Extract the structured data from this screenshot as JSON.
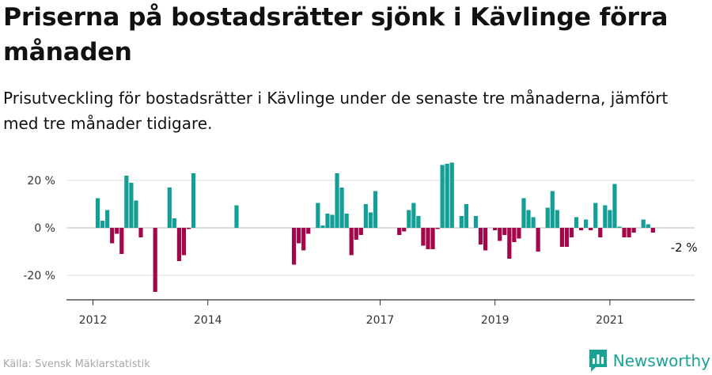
{
  "title": "Priserna på bostadsrätter sjönk i Kävlinge förra månaden",
  "subtitle": "Prisutveckling för bostadsrätter i Kävlinge under de senaste tre månaderna, jämfört med tre månader tidigare.",
  "source": "Källa: Svensk Mäklarstatistik",
  "brand": "Newsworthy",
  "colors": {
    "positive": "#139e96",
    "negative": "#a3064b",
    "grid": "#dddddd",
    "axis": "#333333",
    "brand": "#18a394"
  },
  "chart_data": {
    "type": "bar",
    "title": "Priserna på bostadsrätter sjönk i Kävlinge förra månaden",
    "xlabel": "",
    "ylabel": "",
    "ylim": [
      -31,
      33
    ],
    "yticks": [
      {
        "value": 20,
        "label": "20 %"
      },
      {
        "value": 0,
        "label": "0 %"
      },
      {
        "value": -20,
        "label": "-20 %"
      }
    ],
    "xticks": [
      {
        "date": "2012-01",
        "label": "2012"
      },
      {
        "date": "2014-01",
        "label": "2014"
      },
      {
        "date": "2017-01",
        "label": "2017"
      },
      {
        "date": "2019-01",
        "label": "2019"
      },
      {
        "date": "2021-01",
        "label": "2021"
      }
    ],
    "annotation": {
      "date": "2022-05",
      "text": "-2 %"
    },
    "series": [
      {
        "name": "Prisutveckling",
        "unit": "%",
        "points": [
          {
            "date": "2012-01",
            "value": null
          },
          {
            "date": "2012-02",
            "value": 12.5
          },
          {
            "date": "2012-03",
            "value": 3
          },
          {
            "date": "2012-04",
            "value": 7.5
          },
          {
            "date": "2012-05",
            "value": -6.5
          },
          {
            "date": "2012-06",
            "value": -2.5
          },
          {
            "date": "2012-07",
            "value": -11
          },
          {
            "date": "2012-08",
            "value": 22
          },
          {
            "date": "2012-09",
            "value": 19
          },
          {
            "date": "2012-10",
            "value": 11.5
          },
          {
            "date": "2012-11",
            "value": -4
          },
          {
            "date": "2012-12",
            "value": null
          },
          {
            "date": "2013-01",
            "value": null
          },
          {
            "date": "2013-02",
            "value": -27
          },
          {
            "date": "2013-03",
            "value": null
          },
          {
            "date": "2013-04",
            "value": null
          },
          {
            "date": "2013-05",
            "value": 17
          },
          {
            "date": "2013-06",
            "value": 4
          },
          {
            "date": "2013-07",
            "value": -14
          },
          {
            "date": "2013-08",
            "value": -11.5
          },
          {
            "date": "2013-09",
            "value": -0.5
          },
          {
            "date": "2013-10",
            "value": 23
          },
          {
            "date": "2013-11",
            "value": null
          },
          {
            "date": "2013-12",
            "value": null
          },
          {
            "date": "2014-01",
            "value": null
          },
          {
            "date": "2014-02",
            "value": null
          },
          {
            "date": "2014-03",
            "value": null
          },
          {
            "date": "2014-04",
            "value": null
          },
          {
            "date": "2014-05",
            "value": null
          },
          {
            "date": "2014-06",
            "value": null
          },
          {
            "date": "2014-07",
            "value": 9.5
          },
          {
            "date": "2014-08",
            "value": null
          },
          {
            "date": "2014-09",
            "value": null
          },
          {
            "date": "2014-10",
            "value": null
          },
          {
            "date": "2014-11",
            "value": null
          },
          {
            "date": "2014-12",
            "value": null
          },
          {
            "date": "2015-01",
            "value": null
          },
          {
            "date": "2015-02",
            "value": null
          },
          {
            "date": "2015-03",
            "value": null
          },
          {
            "date": "2015-04",
            "value": null
          },
          {
            "date": "2015-05",
            "value": null
          },
          {
            "date": "2015-06",
            "value": null
          },
          {
            "date": "2015-07",
            "value": -15.5
          },
          {
            "date": "2015-08",
            "value": -6.5
          },
          {
            "date": "2015-09",
            "value": -9.5
          },
          {
            "date": "2015-10",
            "value": -2.5
          },
          {
            "date": "2015-11",
            "value": null
          },
          {
            "date": "2015-12",
            "value": 10.5
          },
          {
            "date": "2016-01",
            "value": 1
          },
          {
            "date": "2016-02",
            "value": 6
          },
          {
            "date": "2016-03",
            "value": 5.5
          },
          {
            "date": "2016-04",
            "value": 23
          },
          {
            "date": "2016-05",
            "value": 17
          },
          {
            "date": "2016-06",
            "value": 6
          },
          {
            "date": "2016-07",
            "value": -11.5
          },
          {
            "date": "2016-08",
            "value": -5
          },
          {
            "date": "2016-09",
            "value": -3
          },
          {
            "date": "2016-10",
            "value": 10
          },
          {
            "date": "2016-11",
            "value": 6.5
          },
          {
            "date": "2016-12",
            "value": 15.5
          },
          {
            "date": "2017-01",
            "value": null
          },
          {
            "date": "2017-02",
            "value": null
          },
          {
            "date": "2017-03",
            "value": null
          },
          {
            "date": "2017-04",
            "value": null
          },
          {
            "date": "2017-05",
            "value": -3
          },
          {
            "date": "2017-06",
            "value": -1.5
          },
          {
            "date": "2017-07",
            "value": 7.5
          },
          {
            "date": "2017-08",
            "value": 10.5
          },
          {
            "date": "2017-09",
            "value": 5
          },
          {
            "date": "2017-10",
            "value": -7.5
          },
          {
            "date": "2017-11",
            "value": -9
          },
          {
            "date": "2017-12",
            "value": -9
          },
          {
            "date": "2018-01",
            "value": -0.5
          },
          {
            "date": "2018-02",
            "value": 26.5
          },
          {
            "date": "2018-03",
            "value": 27
          },
          {
            "date": "2018-04",
            "value": 27.5
          },
          {
            "date": "2018-05",
            "value": null
          },
          {
            "date": "2018-06",
            "value": 5
          },
          {
            "date": "2018-07",
            "value": 10
          },
          {
            "date": "2018-08",
            "value": null
          },
          {
            "date": "2018-09",
            "value": 5
          },
          {
            "date": "2018-10",
            "value": -7
          },
          {
            "date": "2018-11",
            "value": -9.5
          },
          {
            "date": "2018-12",
            "value": null
          },
          {
            "date": "2019-01",
            "value": -1
          },
          {
            "date": "2019-02",
            "value": -5.5
          },
          {
            "date": "2019-03",
            "value": -3
          },
          {
            "date": "2019-04",
            "value": -13
          },
          {
            "date": "2019-05",
            "value": -6
          },
          {
            "date": "2019-06",
            "value": -4.5
          },
          {
            "date": "2019-07",
            "value": 12.5
          },
          {
            "date": "2019-08",
            "value": 7.5
          },
          {
            "date": "2019-09",
            "value": 4.5
          },
          {
            "date": "2019-10",
            "value": -10
          },
          {
            "date": "2019-11",
            "value": null
          },
          {
            "date": "2019-12",
            "value": 8.5
          },
          {
            "date": "2020-01",
            "value": 15.5
          },
          {
            "date": "2020-02",
            "value": 7.5
          },
          {
            "date": "2020-03",
            "value": -8
          },
          {
            "date": "2020-04",
            "value": -8
          },
          {
            "date": "2020-05",
            "value": -4
          },
          {
            "date": "2020-06",
            "value": 4.5
          },
          {
            "date": "2020-07",
            "value": -1
          },
          {
            "date": "2020-08",
            "value": 3.5
          },
          {
            "date": "2020-09",
            "value": -1
          },
          {
            "date": "2020-10",
            "value": 10.5
          },
          {
            "date": "2020-11",
            "value": -4
          },
          {
            "date": "2020-12",
            "value": 9.5
          },
          {
            "date": "2021-01",
            "value": 7.5
          },
          {
            "date": "2021-02",
            "value": 18.5
          },
          {
            "date": "2021-03",
            "value": 0.5
          },
          {
            "date": "2021-04",
            "value": -4
          },
          {
            "date": "2021-05",
            "value": -4
          },
          {
            "date": "2021-06",
            "value": -2
          },
          {
            "date": "2021-07",
            "value": null
          },
          {
            "date": "2021-08",
            "value": 3.5
          },
          {
            "date": "2021-09",
            "value": 1.5
          },
          {
            "date": "2021-10",
            "value": -2
          }
        ]
      }
    ]
  }
}
